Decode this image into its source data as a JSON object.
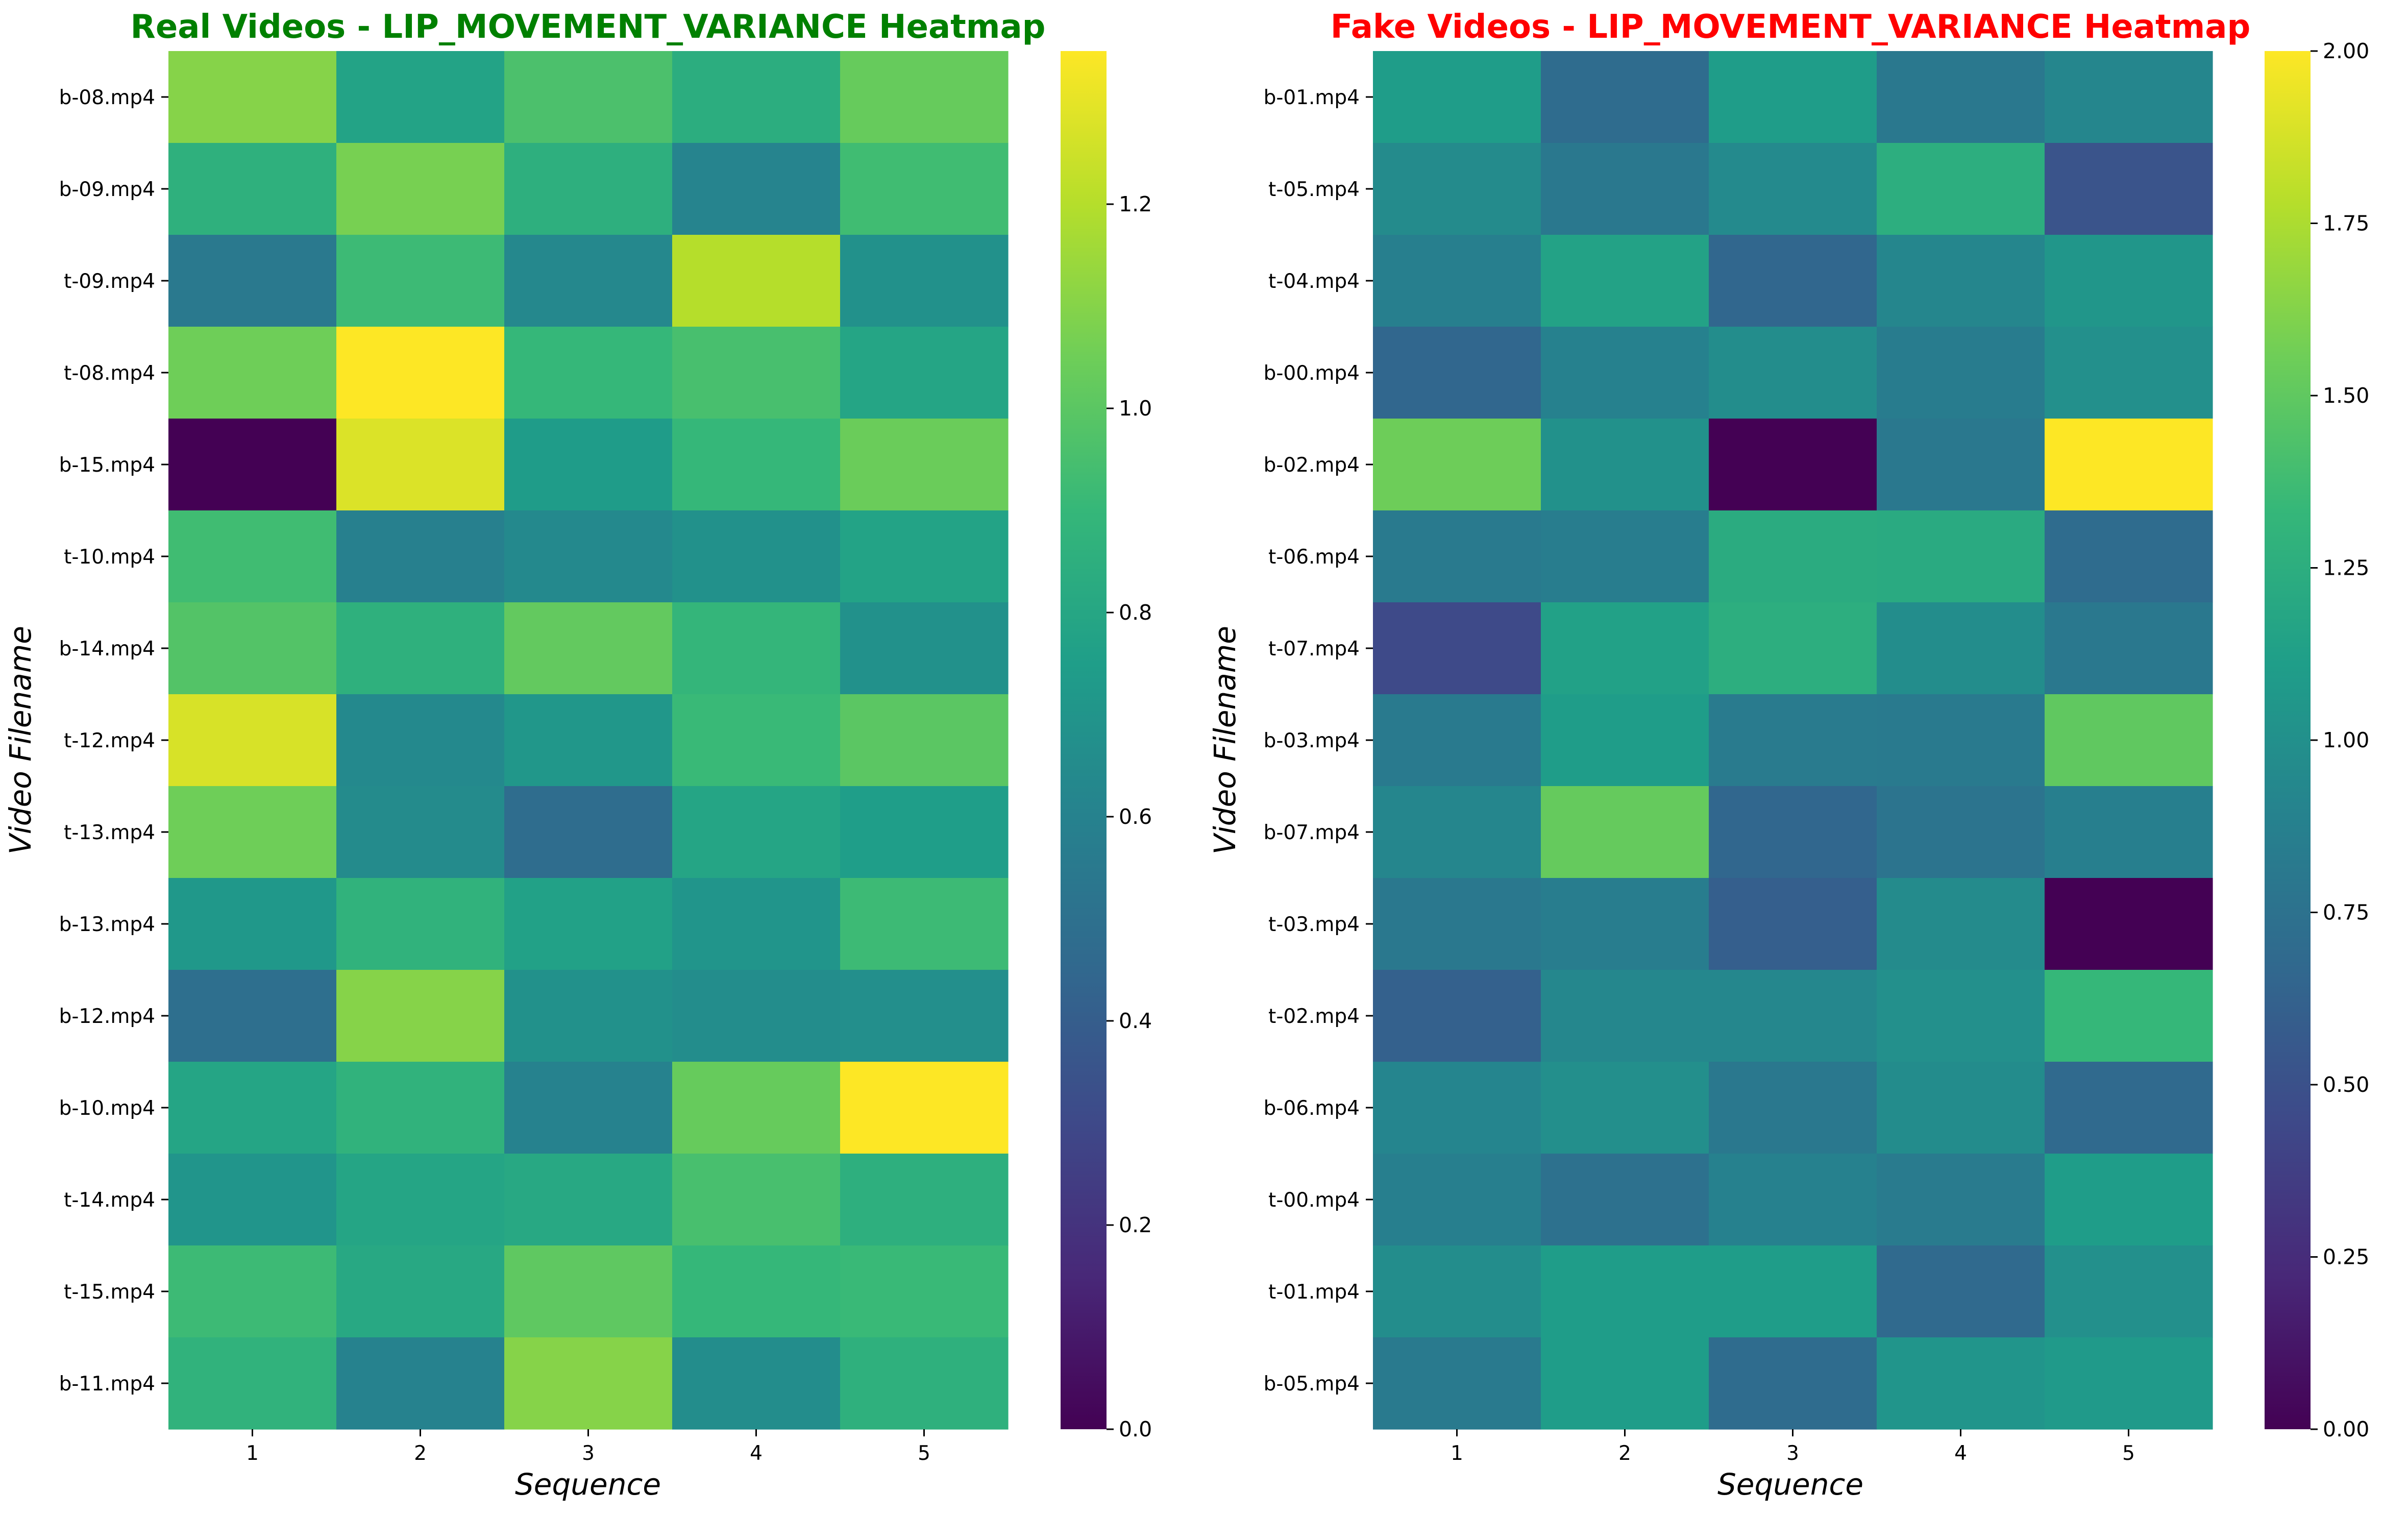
{
  "chart_data": [
    {
      "type": "heatmap",
      "title": "Real Videos - LIP_MOVEMENT_VARIANCE Heatmap",
      "title_color": "#008000",
      "xlabel": "Sequence",
      "ylabel": "Video Filename",
      "x_categories": [
        "1",
        "2",
        "3",
        "4",
        "5"
      ],
      "y_categories": [
        "b-08.mp4",
        "b-09.mp4",
        "t-09.mp4",
        "t-08.mp4",
        "b-15.mp4",
        "t-10.mp4",
        "b-14.mp4",
        "t-12.mp4",
        "t-13.mp4",
        "b-13.mp4",
        "b-12.mp4",
        "b-10.mp4",
        "t-14.mp4",
        "t-15.mp4",
        "b-11.mp4"
      ],
      "values": [
        [
          1.1,
          0.78,
          0.96,
          0.84,
          1.03
        ],
        [
          0.86,
          1.07,
          0.85,
          0.61,
          0.93
        ],
        [
          0.55,
          0.92,
          0.63,
          1.2,
          0.68
        ],
        [
          1.05,
          1.35,
          0.9,
          0.95,
          0.79
        ],
        [
          0.0,
          1.28,
          0.74,
          0.9,
          1.04
        ],
        [
          0.93,
          0.59,
          0.64,
          0.68,
          0.78
        ],
        [
          0.98,
          0.86,
          1.02,
          0.89,
          0.68
        ],
        [
          1.27,
          0.64,
          0.71,
          0.91,
          1.0
        ],
        [
          1.05,
          0.65,
          0.48,
          0.79,
          0.75
        ],
        [
          0.72,
          0.87,
          0.77,
          0.7,
          0.92
        ],
        [
          0.49,
          1.1,
          0.68,
          0.66,
          0.67
        ],
        [
          0.79,
          0.87,
          0.6,
          1.03,
          1.35
        ],
        [
          0.7,
          0.79,
          0.81,
          0.95,
          0.85
        ],
        [
          0.92,
          0.81,
          1.01,
          0.9,
          0.91
        ],
        [
          0.87,
          0.6,
          1.1,
          0.66,
          0.86
        ]
      ],
      "vmin": 0,
      "vmax": 1.35,
      "colorbar_ticks": [
        "0.0",
        "0.2",
        "0.4",
        "0.6",
        "0.8",
        "1.0",
        "1.2"
      ],
      "colormap": "viridis",
      "grid": false
    },
    {
      "type": "heatmap",
      "title": "Fake Videos - LIP_MOVEMENT_VARIANCE Heatmap",
      "title_color": "#ff0000",
      "xlabel": "Sequence",
      "ylabel": "Video Filename",
      "x_categories": [
        "1",
        "2",
        "3",
        "4",
        "5"
      ],
      "y_categories": [
        "b-01.mp4",
        "t-05.mp4",
        "t-04.mp4",
        "b-00.mp4",
        "b-02.mp4",
        "t-06.mp4",
        "t-07.mp4",
        "b-03.mp4",
        "b-07.mp4",
        "t-03.mp4",
        "t-02.mp4",
        "b-06.mp4",
        "t-00.mp4",
        "t-01.mp4",
        "b-05.mp4"
      ],
      "values": [
        [
          1.1,
          0.7,
          1.1,
          0.8,
          0.92
        ],
        [
          0.96,
          0.8,
          0.95,
          1.25,
          0.52
        ],
        [
          0.86,
          1.15,
          0.66,
          0.92,
          1.05
        ],
        [
          0.66,
          0.88,
          0.98,
          0.84,
          1.0
        ],
        [
          1.55,
          1.01,
          0.0,
          0.8,
          2.0
        ],
        [
          0.82,
          0.85,
          1.23,
          1.22,
          0.7
        ],
        [
          0.45,
          1.14,
          1.25,
          0.98,
          0.8
        ],
        [
          0.82,
          1.1,
          0.83,
          0.82,
          1.5
        ],
        [
          0.92,
          1.52,
          0.66,
          0.77,
          0.86
        ],
        [
          0.8,
          0.85,
          0.6,
          0.96,
          0.0
        ],
        [
          0.62,
          0.93,
          0.93,
          1.0,
          1.33
        ],
        [
          0.91,
          0.99,
          0.8,
          0.97,
          0.68
        ],
        [
          0.86,
          0.74,
          0.88,
          0.83,
          1.1
        ],
        [
          0.98,
          1.1,
          1.1,
          0.68,
          1.0
        ],
        [
          0.82,
          1.1,
          0.7,
          1.04,
          1.08
        ]
      ],
      "vmin": 0,
      "vmax": 2.0,
      "colorbar_ticks": [
        "0.00",
        "0.25",
        "0.50",
        "0.75",
        "1.00",
        "1.25",
        "1.50",
        "1.75",
        "2.00"
      ],
      "colormap": "viridis",
      "grid": false
    }
  ]
}
